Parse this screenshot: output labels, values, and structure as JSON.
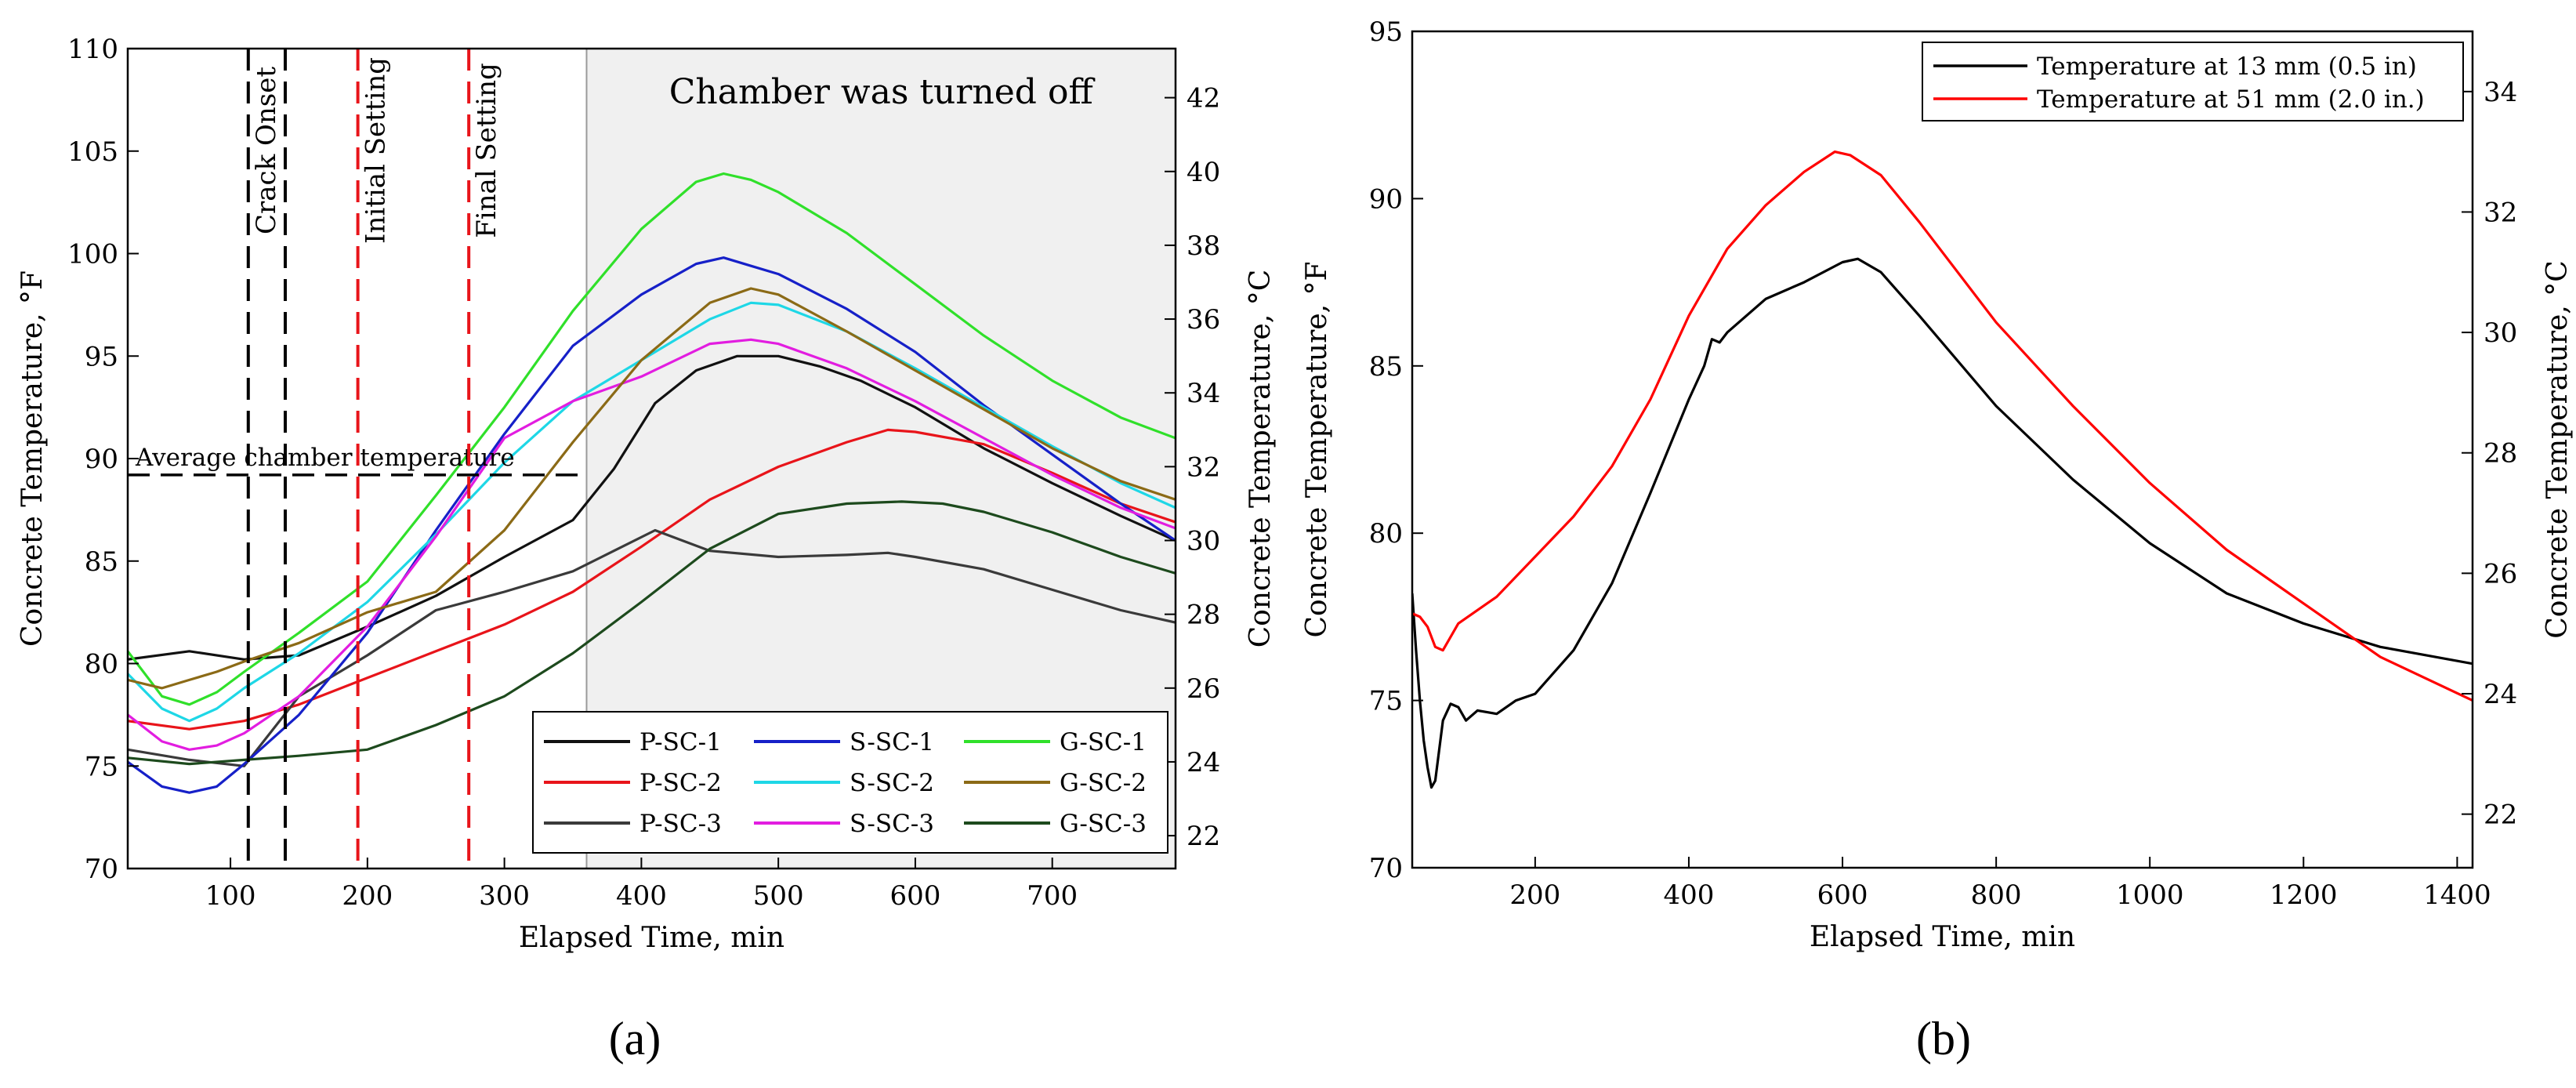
{
  "figure": {
    "panel_a_label": "(a)",
    "panel_b_label": "(b)"
  },
  "chart_data": [
    {
      "type": "line",
      "panel": "a",
      "xlabel": "Elapsed Time, min",
      "ylabel": "Concrete Temperature, °F",
      "ylabel_right": "Concrete Temperature, °C",
      "xlim": [
        25,
        790
      ],
      "ylim": [
        70,
        110
      ],
      "ylim_right": [
        21.11,
        43.33
      ],
      "xticks": [
        100,
        200,
        300,
        400,
        500,
        600,
        700
      ],
      "yticks": [
        70,
        75,
        80,
        85,
        90,
        95,
        100,
        105,
        110
      ],
      "yticks_right": [
        22,
        24,
        26,
        28,
        30,
        32,
        34,
        36,
        38,
        40,
        42
      ],
      "shaded_region": {
        "x_start": 360,
        "x_end": 790,
        "label": "Chamber was turned off",
        "color": "#f0f0f0"
      },
      "vertical_markers": [
        {
          "x": 113,
          "label": "Crack Onset",
          "color": "#000000",
          "style": "dashed"
        },
        {
          "x": 140,
          "label": "",
          "color": "#000000",
          "style": "dashed"
        },
        {
          "x": 193,
          "label": "Initial Setting",
          "color": "#e8141a",
          "style": "dashed"
        },
        {
          "x": 274,
          "label": "Final Setting",
          "color": "#e8141a",
          "style": "dashed"
        }
      ],
      "horizontal_markers": [
        {
          "y": 89.2,
          "x_end": 360,
          "label": "Average chamber temperature",
          "color": "#000000",
          "style": "dashed"
        }
      ],
      "legend": {
        "placement": "bottom-right",
        "columns": 3
      },
      "series": [
        {
          "name": "P-SC-1",
          "color": "#111111",
          "x": [
            25,
            70,
            110,
            150,
            200,
            250,
            300,
            350,
            380,
            410,
            440,
            470,
            500,
            530,
            560,
            600,
            650,
            700,
            750,
            790
          ],
          "y": [
            80.2,
            80.6,
            80.2,
            80.4,
            81.8,
            83.3,
            85.2,
            87.0,
            89.5,
            92.7,
            94.3,
            95.0,
            95.0,
            94.5,
            93.8,
            92.5,
            90.5,
            88.8,
            87.2,
            86.0
          ]
        },
        {
          "name": "P-SC-2",
          "color": "#e8141a",
          "x": [
            25,
            70,
            110,
            150,
            200,
            250,
            300,
            350,
            400,
            450,
            500,
            550,
            580,
            600,
            650,
            700,
            750,
            790
          ],
          "y": [
            77.2,
            76.8,
            77.2,
            78.0,
            79.3,
            80.6,
            81.9,
            83.5,
            85.7,
            88.0,
            89.6,
            90.8,
            91.4,
            91.3,
            90.7,
            89.3,
            87.8,
            86.9
          ]
        },
        {
          "name": "P-SC-3",
          "color": "#3a3a3a",
          "x": [
            25,
            70,
            110,
            150,
            200,
            250,
            300,
            350,
            380,
            410,
            430,
            450,
            500,
            550,
            580,
            600,
            650,
            700,
            750,
            790
          ],
          "y": [
            75.8,
            75.3,
            75.0,
            78.4,
            80.4,
            82.6,
            83.5,
            84.5,
            85.5,
            86.5,
            86.0,
            85.5,
            85.2,
            85.3,
            85.4,
            85.2,
            84.6,
            83.6,
            82.6,
            82.0
          ]
        },
        {
          "name": "S-SC-1",
          "color": "#1620c8",
          "x": [
            25,
            50,
            70,
            90,
            110,
            150,
            200,
            250,
            300,
            350,
            400,
            440,
            460,
            480,
            500,
            550,
            600,
            650,
            700,
            750,
            790
          ],
          "y": [
            75.2,
            74.0,
            73.7,
            74.0,
            75.1,
            77.5,
            81.5,
            86.5,
            91.2,
            95.5,
            98.0,
            99.5,
            99.8,
            99.4,
            99.0,
            97.3,
            95.2,
            92.6,
            90.2,
            87.8,
            86.0
          ]
        },
        {
          "name": "S-SC-2",
          "color": "#1ed7e6",
          "x": [
            25,
            50,
            70,
            90,
            110,
            150,
            200,
            250,
            300,
            350,
            400,
            450,
            480,
            500,
            550,
            600,
            650,
            700,
            750,
            790
          ],
          "y": [
            79.5,
            77.8,
            77.2,
            77.8,
            78.8,
            80.5,
            83.0,
            86.3,
            89.8,
            92.8,
            94.8,
            96.8,
            97.6,
            97.5,
            96.2,
            94.4,
            92.5,
            90.6,
            88.8,
            87.6
          ]
        },
        {
          "name": "S-SC-3",
          "color": "#e21de0",
          "x": [
            25,
            50,
            70,
            90,
            110,
            150,
            200,
            250,
            300,
            350,
            400,
            450,
            480,
            500,
            550,
            600,
            650,
            700,
            750,
            790
          ],
          "y": [
            77.5,
            76.2,
            75.8,
            76.0,
            76.6,
            78.4,
            81.8,
            86.2,
            91.0,
            92.8,
            94.0,
            95.6,
            95.8,
            95.6,
            94.4,
            92.8,
            91.0,
            89.2,
            87.6,
            86.6
          ]
        },
        {
          "name": "G-SC-1",
          "color": "#30e02a",
          "x": [
            25,
            50,
            70,
            90,
            110,
            150,
            200,
            250,
            300,
            350,
            400,
            440,
            460,
            480,
            500,
            550,
            600,
            650,
            700,
            750,
            790
          ],
          "y": [
            80.6,
            78.4,
            78.0,
            78.6,
            79.6,
            81.5,
            84.0,
            88.2,
            92.5,
            97.2,
            101.2,
            103.5,
            103.9,
            103.6,
            103.0,
            101.0,
            98.5,
            96.0,
            93.8,
            92.0,
            91.0
          ]
        },
        {
          "name": "G-SC-2",
          "color": "#8b6a16",
          "x": [
            25,
            50,
            70,
            90,
            110,
            150,
            200,
            250,
            300,
            350,
            400,
            450,
            480,
            500,
            550,
            600,
            650,
            700,
            750,
            790
          ],
          "y": [
            79.2,
            78.8,
            79.2,
            79.6,
            80.1,
            81.0,
            82.5,
            83.5,
            86.5,
            90.8,
            94.8,
            97.6,
            98.3,
            98.0,
            96.2,
            94.3,
            92.4,
            90.5,
            88.9,
            88.0
          ]
        },
        {
          "name": "G-SC-3",
          "color": "#1d4a1d",
          "x": [
            25,
            70,
            110,
            150,
            200,
            250,
            300,
            350,
            400,
            450,
            500,
            550,
            590,
            620,
            650,
            700,
            750,
            790
          ],
          "y": [
            75.4,
            75.1,
            75.3,
            75.5,
            75.8,
            77.0,
            78.4,
            80.5,
            83.0,
            85.6,
            87.3,
            87.8,
            87.9,
            87.8,
            87.4,
            86.4,
            85.2,
            84.4
          ]
        }
      ]
    },
    {
      "type": "line",
      "panel": "b",
      "xlabel": "Elapsed Time, min",
      "ylabel": "Concrete Temperature, °F",
      "ylabel_right": "Concrete Temperature, °C",
      "xlim": [
        40,
        1420
      ],
      "ylim": [
        70,
        95
      ],
      "ylim_right": [
        21.11,
        35
      ],
      "xticks": [
        200,
        400,
        600,
        800,
        1000,
        1200,
        1400
      ],
      "yticks": [
        70,
        75,
        80,
        85,
        90,
        95
      ],
      "yticks_right": [
        22,
        24,
        26,
        28,
        30,
        32,
        34
      ],
      "legend": {
        "placement": "top-right",
        "columns": 1
      },
      "series": [
        {
          "name": "Temperature at 13 mm (0.5 in)",
          "color": "#000000",
          "x": [
            40,
            45,
            50,
            55,
            60,
            65,
            70,
            75,
            80,
            90,
            100,
            110,
            125,
            150,
            175,
            200,
            250,
            300,
            350,
            400,
            420,
            430,
            440,
            450,
            500,
            550,
            600,
            620,
            650,
            700,
            800,
            900,
            1000,
            1100,
            1200,
            1300,
            1420
          ],
          "y": [
            78.2,
            76.5,
            75.0,
            73.8,
            73.0,
            72.4,
            72.6,
            73.5,
            74.4,
            74.9,
            74.8,
            74.4,
            74.7,
            74.6,
            75.0,
            75.2,
            76.5,
            78.5,
            81.2,
            84.0,
            85.0,
            85.8,
            85.7,
            86.0,
            87.0,
            87.5,
            88.1,
            88.2,
            87.8,
            86.5,
            83.8,
            81.6,
            79.7,
            78.2,
            77.3,
            76.6,
            76.1
          ]
        },
        {
          "name": "Temperature at 51 mm (2.0 in.)",
          "color": "#ff0000",
          "x": [
            40,
            50,
            60,
            70,
            80,
            90,
            100,
            150,
            200,
            250,
            300,
            350,
            400,
            450,
            500,
            550,
            590,
            610,
            650,
            700,
            800,
            900,
            1000,
            1100,
            1200,
            1300,
            1420
          ],
          "y": [
            77.6,
            77.5,
            77.2,
            76.6,
            76.5,
            76.9,
            77.3,
            78.1,
            79.3,
            80.5,
            82.0,
            84.0,
            86.5,
            88.5,
            89.8,
            90.8,
            91.4,
            91.3,
            90.7,
            89.3,
            86.3,
            83.8,
            81.5,
            79.5,
            77.9,
            76.3,
            75.0
          ]
        }
      ]
    }
  ]
}
